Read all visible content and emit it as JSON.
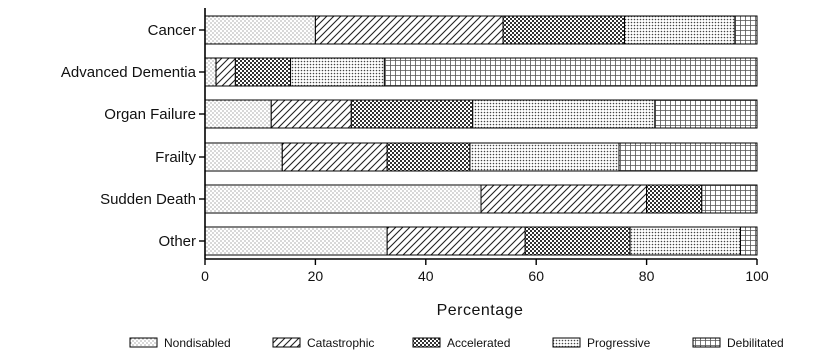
{
  "chart_data": {
    "type": "bar",
    "orientation": "horizontal",
    "stacked": true,
    "categories": [
      "Cancer",
      "Advanced Dementia",
      "Organ Failure",
      "Frailty",
      "Sudden Death",
      "Other"
    ],
    "series": [
      {
        "name": "Nondisabled",
        "pattern": "dots",
        "values": [
          20,
          2,
          12,
          14,
          50,
          33
        ]
      },
      {
        "name": "Catastrophic",
        "pattern": "diagonal",
        "values": [
          34,
          3.5,
          14.5,
          19,
          30,
          25
        ]
      },
      {
        "name": "Accelerated",
        "pattern": "checker",
        "values": [
          22,
          10,
          22,
          15,
          10,
          19
        ]
      },
      {
        "name": "Progressive",
        "pattern": "dense-dots",
        "values": [
          20,
          17,
          33,
          27,
          0,
          20
        ]
      },
      {
        "name": "Debilitated",
        "pattern": "grid",
        "values": [
          4,
          67.5,
          18.5,
          25,
          10,
          3
        ]
      }
    ],
    "xlabel": "Percentage",
    "ylabel": "",
    "xlim": [
      0,
      100
    ],
    "xticks": [
      0,
      20,
      40,
      60,
      80,
      100
    ],
    "grid": false,
    "legend_position": "bottom",
    "colors": {
      "stroke": "#000000",
      "pattern": "#333333",
      "background": "#ffffff"
    }
  }
}
